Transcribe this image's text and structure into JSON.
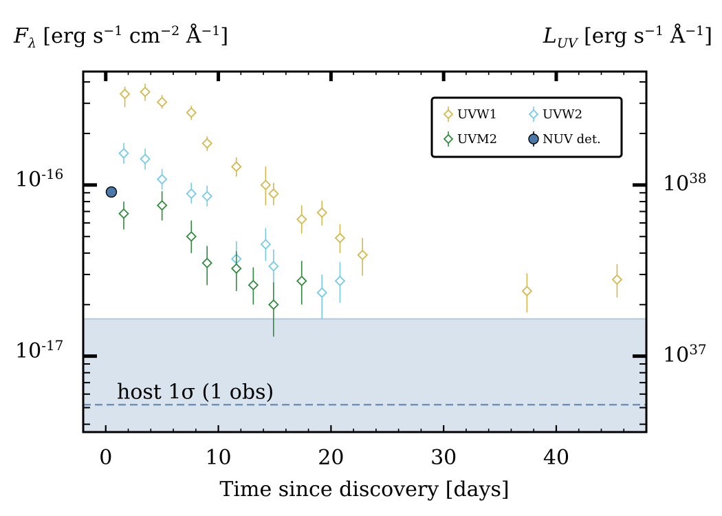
{
  "chart_data": {
    "type": "scatter",
    "y_scale": "log",
    "xlabel": "Time since discovery [days]",
    "ylabel_left": {
      "main": "F",
      "sub": "λ",
      "unit": "[erg s",
      "e1": "−1",
      "cm": " cm",
      "e2": "−2",
      "ang": " Å",
      "e3": "−1",
      "close": "]"
    },
    "ylabel_right": {
      "main": "L",
      "sub": "UV",
      "unit": " [erg s",
      "e1": "−1",
      "ang": " Å",
      "e2": "−1",
      "close": "]"
    },
    "xlim": [
      -2,
      48
    ],
    "ylim": [
      3.6e-18,
      4.6e-16
    ],
    "x_ticks": [
      0,
      10,
      20,
      30,
      40
    ],
    "x_tick_labels": [
      "0",
      "10",
      "20",
      "30",
      "40"
    ],
    "left_ticks": [
      {
        "value": 1e-16,
        "base": "10",
        "exp": "-16"
      },
      {
        "value": 1e-17,
        "base": "10",
        "exp": "-17"
      }
    ],
    "right_ticks": [
      {
        "value": 1e-16,
        "base": "10",
        "exp": "38"
      },
      {
        "value": 1e-17,
        "base": "10",
        "exp": "37"
      }
    ],
    "host_band": {
      "upper": 1.65e-17,
      "level": 5.2e-18,
      "label": "host 1σ (1 obs)",
      "fill": "#d9e3ee",
      "edge": "#b4c9de",
      "line": "#6b93bd"
    },
    "series": [
      {
        "name": "UVW1",
        "marker": "diamond",
        "color": "#d4b84a",
        "points": [
          [
            1.7,
            3.4e-16,
            2.85e-16,
            3.75e-16
          ],
          [
            3.5,
            3.5e-16,
            3.1e-16,
            3.9e-16
          ],
          [
            5.0,
            3.05e-16,
            2.8e-16,
            3.35e-16
          ],
          [
            7.6,
            2.65e-16,
            2.4e-16,
            2.9e-16
          ],
          [
            9.0,
            1.75e-16,
            1.58e-16,
            1.92e-16
          ],
          [
            11.6,
            1.28e-16,
            1.12e-16,
            1.45e-16
          ],
          [
            14.2,
            1e-16,
            7.6e-17,
            1.28e-16
          ],
          [
            14.9,
            8.9e-17,
            7.6e-17,
            1.03e-16
          ],
          [
            17.4,
            6.3e-17,
            5.2e-17,
            7.6e-17
          ],
          [
            19.2,
            6.9e-17,
            5.8e-17,
            8.1e-17
          ],
          [
            20.8,
            4.9e-17,
            4e-17,
            5.9e-17
          ],
          [
            22.8,
            3.9e-17,
            2.95e-17,
            4.9e-17
          ],
          [
            37.4,
            2.4e-17,
            1.8e-17,
            3.05e-17
          ],
          [
            45.4,
            2.8e-17,
            2.2e-17,
            3.45e-17
          ]
        ]
      },
      {
        "name": "UVW2",
        "marker": "diamond",
        "color": "#74cbe8",
        "points": [
          [
            1.6,
            1.53e-16,
            1.33e-16,
            1.76e-16
          ],
          [
            3.5,
            1.42e-16,
            1.23e-16,
            1.63e-16
          ],
          [
            5.0,
            1.08e-16,
            9.4e-17,
            1.24e-16
          ],
          [
            7.6,
            8.9e-17,
            7.8e-17,
            1.03e-16
          ],
          [
            9.0,
            8.6e-17,
            7.5e-17,
            9.9e-17
          ],
          [
            11.6,
            3.7e-17,
            2.9e-17,
            4.7e-17
          ],
          [
            14.2,
            4.5e-17,
            3.6e-17,
            5.6e-17
          ],
          [
            14.9,
            3.35e-17,
            2.6e-17,
            4.2e-17
          ],
          [
            19.2,
            2.35e-17,
            1.65e-17,
            3e-17
          ],
          [
            20.8,
            2.75e-17,
            2.05e-17,
            3.55e-17
          ]
        ]
      },
      {
        "name": "UVM2",
        "marker": "diamond",
        "color": "#2e8b3c",
        "points": [
          [
            1.6,
            6.8e-17,
            5.5e-17,
            8e-17
          ],
          [
            5.0,
            7.6e-17,
            6.2e-17,
            9.2e-17
          ],
          [
            7.6,
            5e-17,
            4e-17,
            6.2e-17
          ],
          [
            9.0,
            3.5e-17,
            2.6e-17,
            4.4e-17
          ],
          [
            11.6,
            3.25e-17,
            2.4e-17,
            4.1e-17
          ],
          [
            13.1,
            2.6e-17,
            2e-17,
            3.3e-17
          ],
          [
            14.9,
            2e-17,
            1.3e-17,
            2.7e-17
          ],
          [
            17.4,
            2.75e-17,
            2e-17,
            3.6e-17
          ]
        ]
      },
      {
        "name": "NUV det.",
        "marker": "circle",
        "color": "#4a78a8",
        "points": [
          [
            0.5,
            9.1e-17,
            8.6e-17,
            9.6e-17
          ]
        ]
      }
    ],
    "legend": {
      "placement": "top-right",
      "columns": 2
    }
  }
}
